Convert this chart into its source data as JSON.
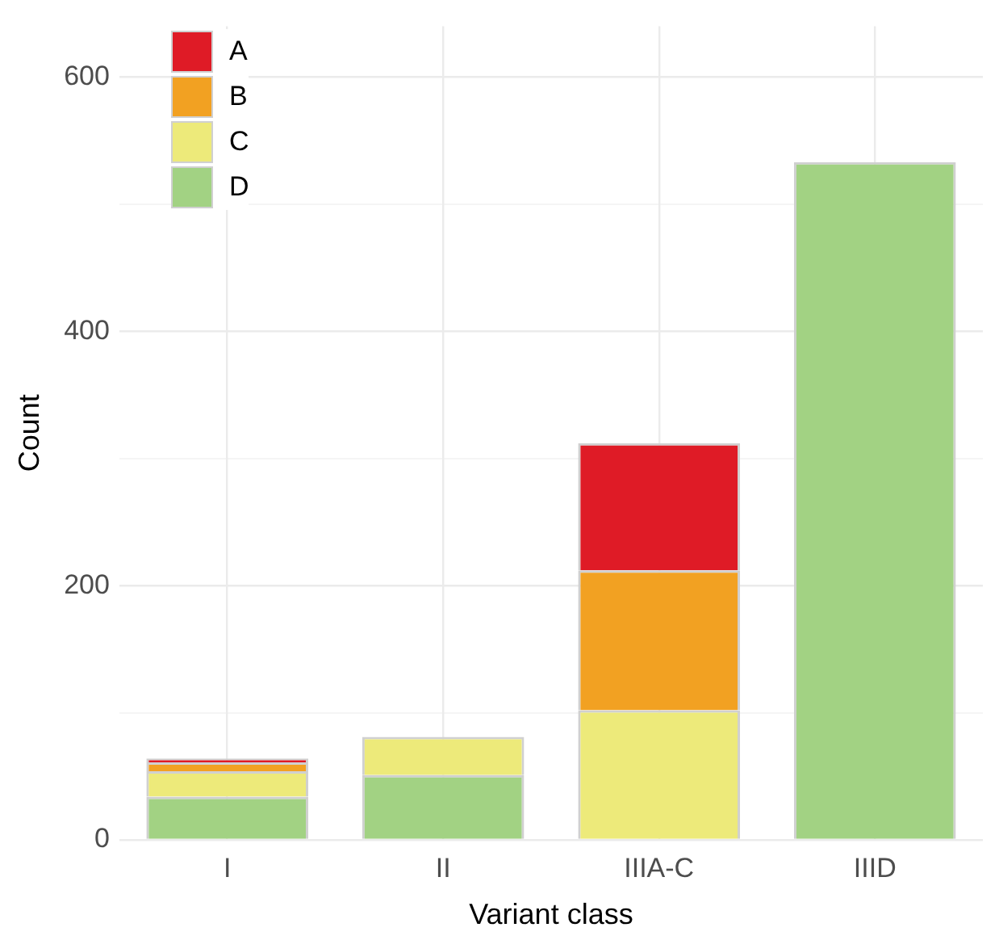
{
  "chart_data": {
    "type": "bar",
    "stacked": true,
    "xlabel": "Variant class",
    "ylabel": "Count",
    "categories": [
      "I",
      "II",
      "IIIA-C",
      "IIID"
    ],
    "series": [
      {
        "name": "D",
        "color": "#a2d283",
        "values": [
          34,
          51,
          0,
          533
        ]
      },
      {
        "name": "C",
        "color": "#edea7a",
        "values": [
          20,
          30,
          102,
          0
        ]
      },
      {
        "name": "B",
        "color": "#f2a122",
        "values": [
          7,
          0,
          110,
          0
        ]
      },
      {
        "name": "A",
        "color": "#df1b26",
        "values": [
          3,
          0,
          100,
          0
        ]
      }
    ],
    "ylim": [
      0,
      640
    ],
    "yticks": [
      0,
      {
        "value": 100,
        "label": null
      },
      200,
      {
        "value": 300,
        "label": null
      },
      400,
      {
        "value": 500,
        "label": null
      },
      600
    ],
    "grid": true,
    "legend": "top left"
  }
}
